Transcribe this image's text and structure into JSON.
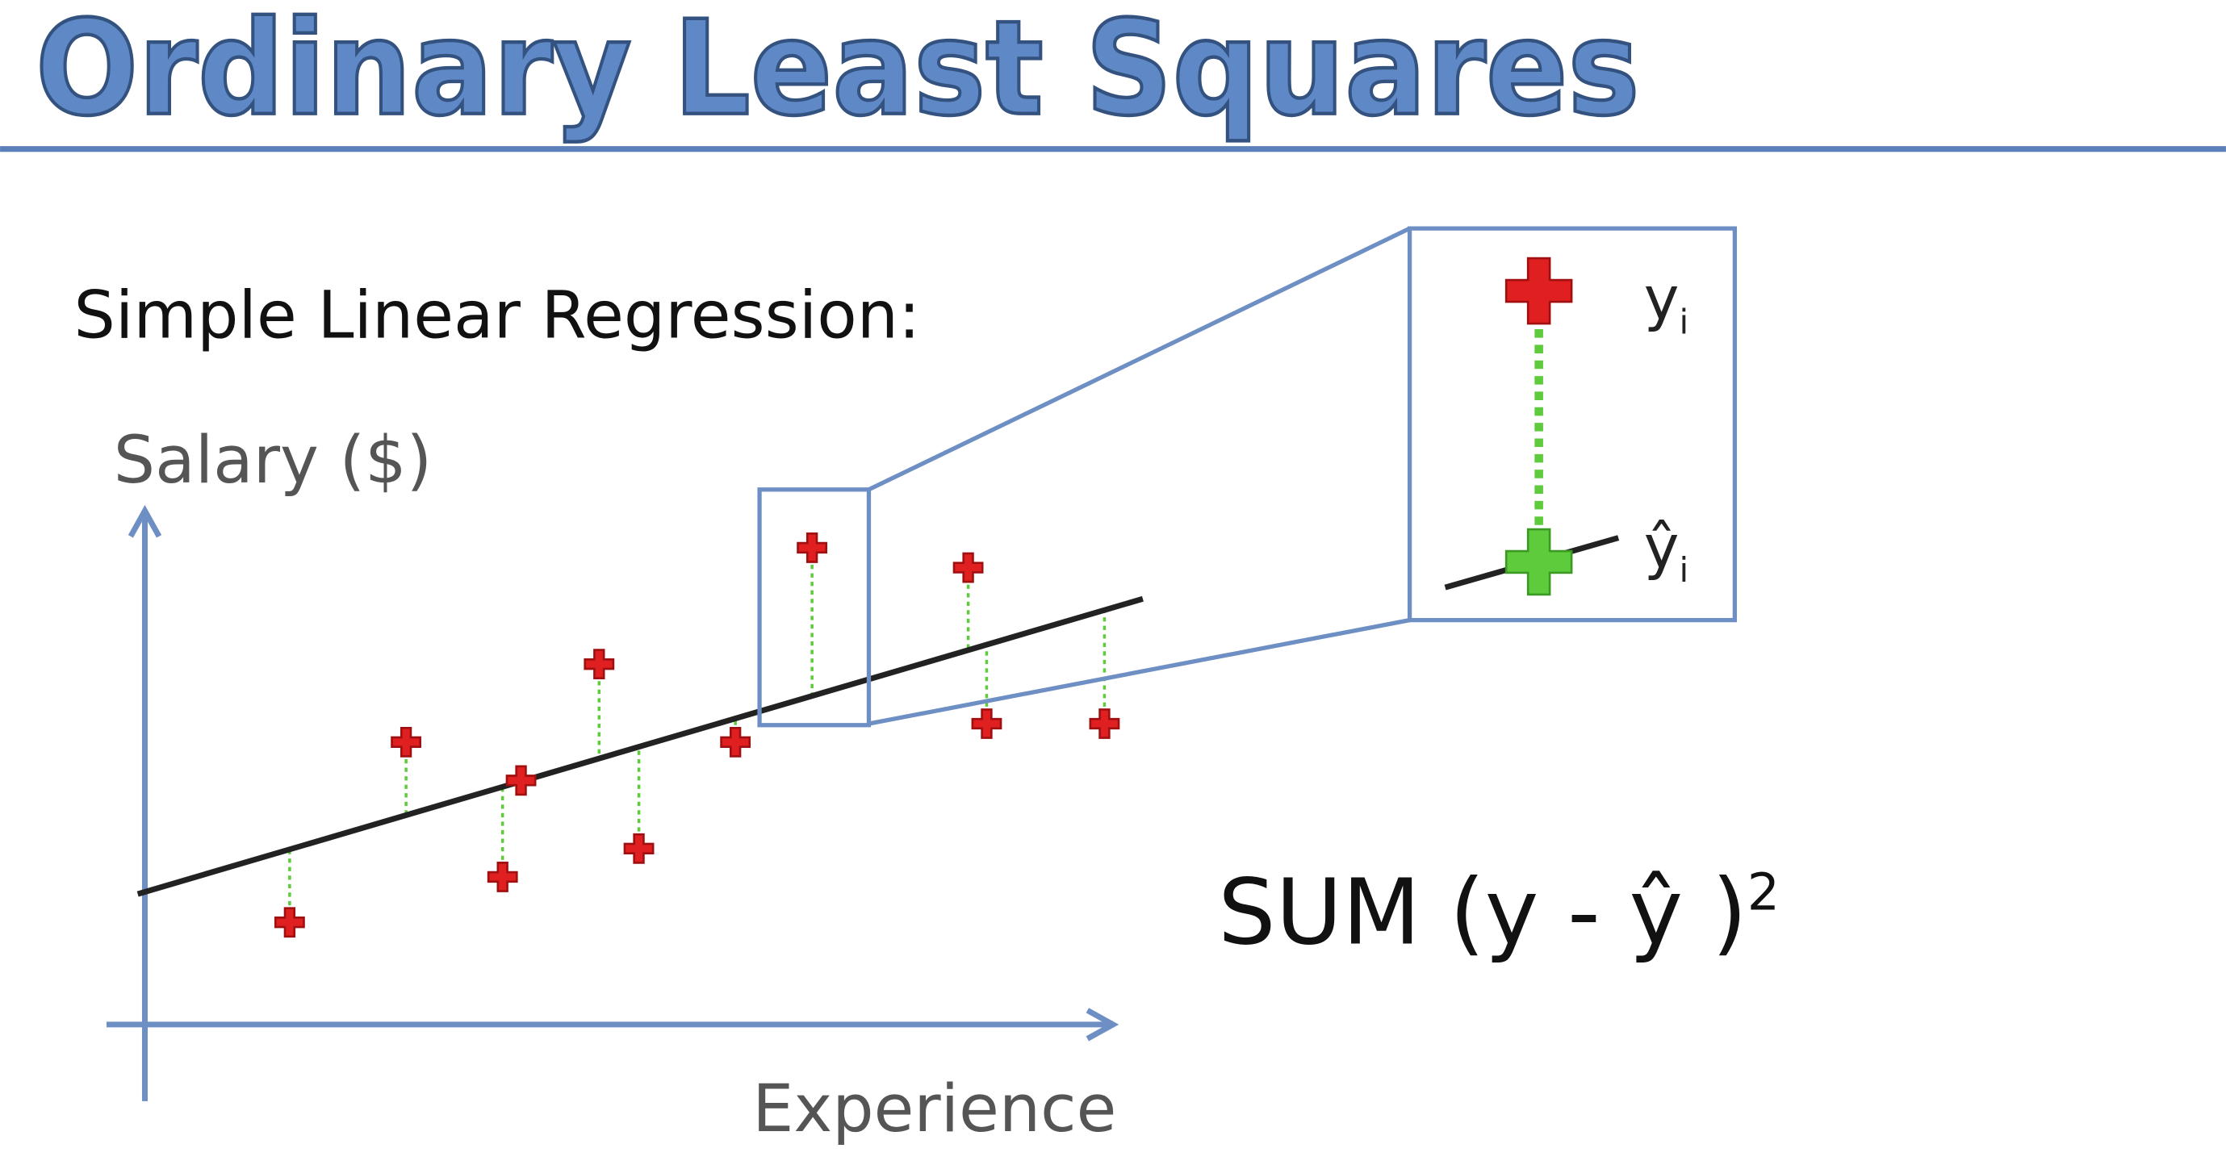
{
  "header": {
    "title": "Ordinary Least Squares"
  },
  "subtitle": "Simple Linear Regression:",
  "axes": {
    "y_label": "Salary ($)",
    "x_label": "Experience"
  },
  "zoom": {
    "actual": {
      "base": "y",
      "sub": "i"
    },
    "predicted": {
      "base": "ŷ",
      "sub": "i"
    }
  },
  "formula": {
    "text": "SUM (y - ŷ )",
    "sup": "2"
  }
}
